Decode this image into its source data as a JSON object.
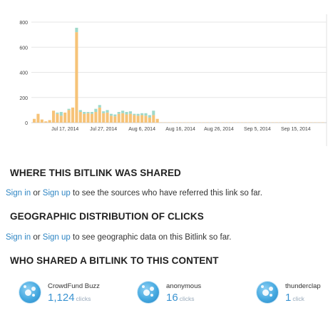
{
  "chart_data": {
    "type": "bar",
    "stacked": true,
    "ylim": [
      0,
      800
    ],
    "yticks": [
      0,
      200,
      400,
      600,
      800
    ],
    "xlabels": [
      "Jul 17, 2014",
      "Jul 27, 2014",
      "Aug 6, 2014",
      "Aug 16, 2014",
      "Aug 26, 2014",
      "Sep 5, 2014",
      "Sep 15, 2014"
    ],
    "xlabel_day_index": [
      8,
      18,
      28,
      38,
      48,
      58,
      68
    ],
    "grid": true,
    "colors": {
      "bottom": "#f6c378",
      "top": "#9fd9c9",
      "gridline": "#e6e6e6",
      "axis": "#cccccc"
    },
    "series": [
      {
        "values": [
          30,
          70,
          25,
          10,
          20,
          95,
          70,
          55,
          80,
          100,
          120,
          720,
          85,
          70,
          75,
          70,
          85,
          120,
          75,
          80,
          55,
          50,
          70,
          75,
          65,
          70,
          60,
          55,
          60,
          55,
          40,
          60,
          30,
          2,
          2,
          2,
          2,
          2,
          2,
          2,
          2,
          2,
          2,
          2,
          2,
          2,
          2,
          2,
          2,
          2,
          2,
          2,
          2,
          2,
          2,
          2,
          2,
          2,
          2,
          2,
          2,
          2,
          2,
          2,
          2,
          2,
          2,
          2,
          2,
          2,
          2,
          2,
          2,
          2,
          2,
          2
        ]
      },
      {
        "values": [
          0,
          0,
          0,
          0,
          0,
          0,
          10,
          30,
          0,
          10,
          0,
          35,
          15,
          15,
          10,
          15,
          25,
          20,
          15,
          20,
          15,
          15,
          15,
          20,
          20,
          20,
          10,
          15,
          15,
          20,
          20,
          35,
          0,
          0,
          0,
          0,
          0,
          0,
          0,
          0,
          0,
          0,
          0,
          0,
          0,
          0,
          0,
          0,
          0,
          0,
          0,
          0,
          0,
          0,
          0,
          0,
          0,
          0,
          0,
          0,
          0,
          0,
          0,
          0,
          0,
          0,
          0,
          0,
          0,
          0,
          0,
          0,
          0,
          0,
          0,
          0
        ]
      }
    ]
  },
  "sections": {
    "shared": {
      "title": "WHERE THIS BITLINK WAS SHARED",
      "sign_in": "Sign in",
      "or": " or ",
      "sign_up": "Sign up",
      "rest": " to see the sources who have referred this link so far."
    },
    "geo": {
      "title": "GEOGRAPHIC DISTRIBUTION OF CLICKS",
      "sign_in": "Sign in",
      "or": " or ",
      "sign_up": "Sign up",
      "rest": " to see geographic data on this Bitlink so far."
    },
    "who": {
      "title": "WHO SHARED A BITLINK TO THIS CONTENT",
      "sharers": [
        {
          "name": "CrowdFund Buzz",
          "count": "1,124",
          "unit": "clicks"
        },
        {
          "name": "anonymous",
          "count": "16",
          "unit": "clicks"
        },
        {
          "name": "thunderclap",
          "count": "1",
          "unit": "click"
        }
      ]
    }
  }
}
